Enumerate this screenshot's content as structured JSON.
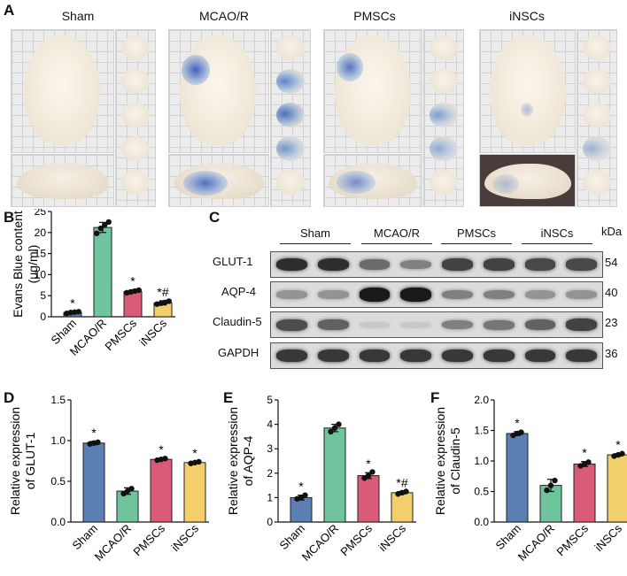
{
  "panels": {
    "a": "A",
    "b": "B",
    "c": "C",
    "d": "D",
    "e": "E",
    "f": "F"
  },
  "brain_groups": [
    "Sham",
    "MCAO/R",
    "PMSCs",
    "iNSCs"
  ],
  "western_blot": {
    "group_labels": [
      "Sham",
      "MCAO/R",
      "PMSCs",
      "iNSCs"
    ],
    "kda_header": "kDa",
    "rows": [
      {
        "protein": "GLUT-1",
        "kda": "54",
        "intensity": [
          0.85,
          0.85,
          0.55,
          0.45,
          0.75,
          0.75,
          0.72,
          0.72
        ]
      },
      {
        "protein": "AQP-4",
        "kda": "40",
        "intensity": [
          0.35,
          0.35,
          0.95,
          0.95,
          0.45,
          0.45,
          0.35,
          0.35
        ]
      },
      {
        "protein": "Claudin-5",
        "kda": "23",
        "intensity": [
          0.7,
          0.6,
          0.1,
          0.1,
          0.45,
          0.5,
          0.6,
          0.75
        ]
      },
      {
        "protein": "GAPDH",
        "kda": "36",
        "intensity": [
          0.8,
          0.8,
          0.8,
          0.8,
          0.8,
          0.8,
          0.8,
          0.8
        ]
      }
    ]
  },
  "chart_data": [
    {
      "id": "B",
      "type": "bar",
      "categories": [
        "Sham",
        "MCAO/R",
        "PMSCs",
        "iNSCs"
      ],
      "values": [
        1.0,
        21.2,
        6.0,
        3.3
      ],
      "errors": [
        0.2,
        1.2,
        0.4,
        0.5
      ],
      "points": [
        [
          0.8,
          1.0,
          1.1,
          1.2
        ],
        [
          19.8,
          21.0,
          21.8,
          22.5
        ],
        [
          5.7,
          5.9,
          6.1,
          6.3
        ],
        [
          3.0,
          3.2,
          3.4,
          3.7
        ]
      ],
      "annotations": [
        "*",
        "",
        "*",
        "*#"
      ],
      "ylabel": "Evans Blue content (μg/ml)",
      "ylim": [
        0,
        25
      ],
      "yticks": [
        0,
        5,
        10,
        15,
        20,
        25
      ],
      "colors": [
        "#5b7fb3",
        "#6fc49d",
        "#d95b77",
        "#f2cf6b"
      ]
    },
    {
      "id": "D",
      "type": "bar",
      "categories": [
        "Sham",
        "MCAO/R",
        "PMSCs",
        "iNSCs"
      ],
      "values": [
        0.97,
        0.38,
        0.77,
        0.73
      ],
      "errors": [
        0.02,
        0.04,
        0.01,
        0.01
      ],
      "points": [
        [
          0.96,
          0.97,
          0.98
        ],
        [
          0.35,
          0.38,
          0.41
        ],
        [
          0.76,
          0.77,
          0.78
        ],
        [
          0.72,
          0.73,
          0.74
        ]
      ],
      "annotations": [
        "*",
        "",
        "*",
        "*"
      ],
      "ylabel": "Relative expression of GLUT-1",
      "ylim": [
        0,
        1.5
      ],
      "yticks": [
        0.0,
        0.5,
        1.0,
        1.5
      ],
      "colors": [
        "#5b7fb3",
        "#6fc49d",
        "#d95b77",
        "#f2cf6b"
      ]
    },
    {
      "id": "E",
      "type": "bar",
      "categories": [
        "Sham",
        "MCAO/R",
        "PMSCs",
        "iNSCs"
      ],
      "values": [
        1.0,
        3.85,
        1.9,
        1.2
      ],
      "errors": [
        0.1,
        0.15,
        0.12,
        0.05
      ],
      "points": [
        [
          0.95,
          1.0,
          1.1
        ],
        [
          3.7,
          3.85,
          4.0
        ],
        [
          1.8,
          1.9,
          2.05
        ],
        [
          1.15,
          1.2,
          1.25
        ]
      ],
      "annotations": [
        "*",
        "",
        "*",
        "*#"
      ],
      "ylabel": "Relative expression of AQP-4",
      "ylim": [
        0,
        5
      ],
      "yticks": [
        0,
        1,
        2,
        3,
        4,
        5
      ],
      "colors": [
        "#5b7fb3",
        "#6fc49d",
        "#d95b77",
        "#f2cf6b"
      ]
    },
    {
      "id": "F",
      "type": "bar",
      "categories": [
        "Sham",
        "MCAO/R",
        "PMSCs",
        "iNSCs"
      ],
      "values": [
        1.45,
        0.6,
        0.95,
        1.1
      ],
      "errors": [
        0.03,
        0.1,
        0.04,
        0.02
      ],
      "points": [
        [
          1.42,
          1.45,
          1.47
        ],
        [
          0.52,
          0.6,
          0.68
        ],
        [
          0.92,
          0.95,
          0.98
        ],
        [
          1.08,
          1.1,
          1.12
        ]
      ],
      "annotations": [
        "*",
        "",
        "*",
        "*"
      ],
      "ylabel": "Relative expression of Claudin-5",
      "ylim": [
        0,
        2.0
      ],
      "yticks": [
        0.0,
        0.5,
        1.0,
        1.5,
        2.0
      ],
      "colors": [
        "#5b7fb3",
        "#6fc49d",
        "#d95b77",
        "#f2cf6b"
      ]
    }
  ]
}
